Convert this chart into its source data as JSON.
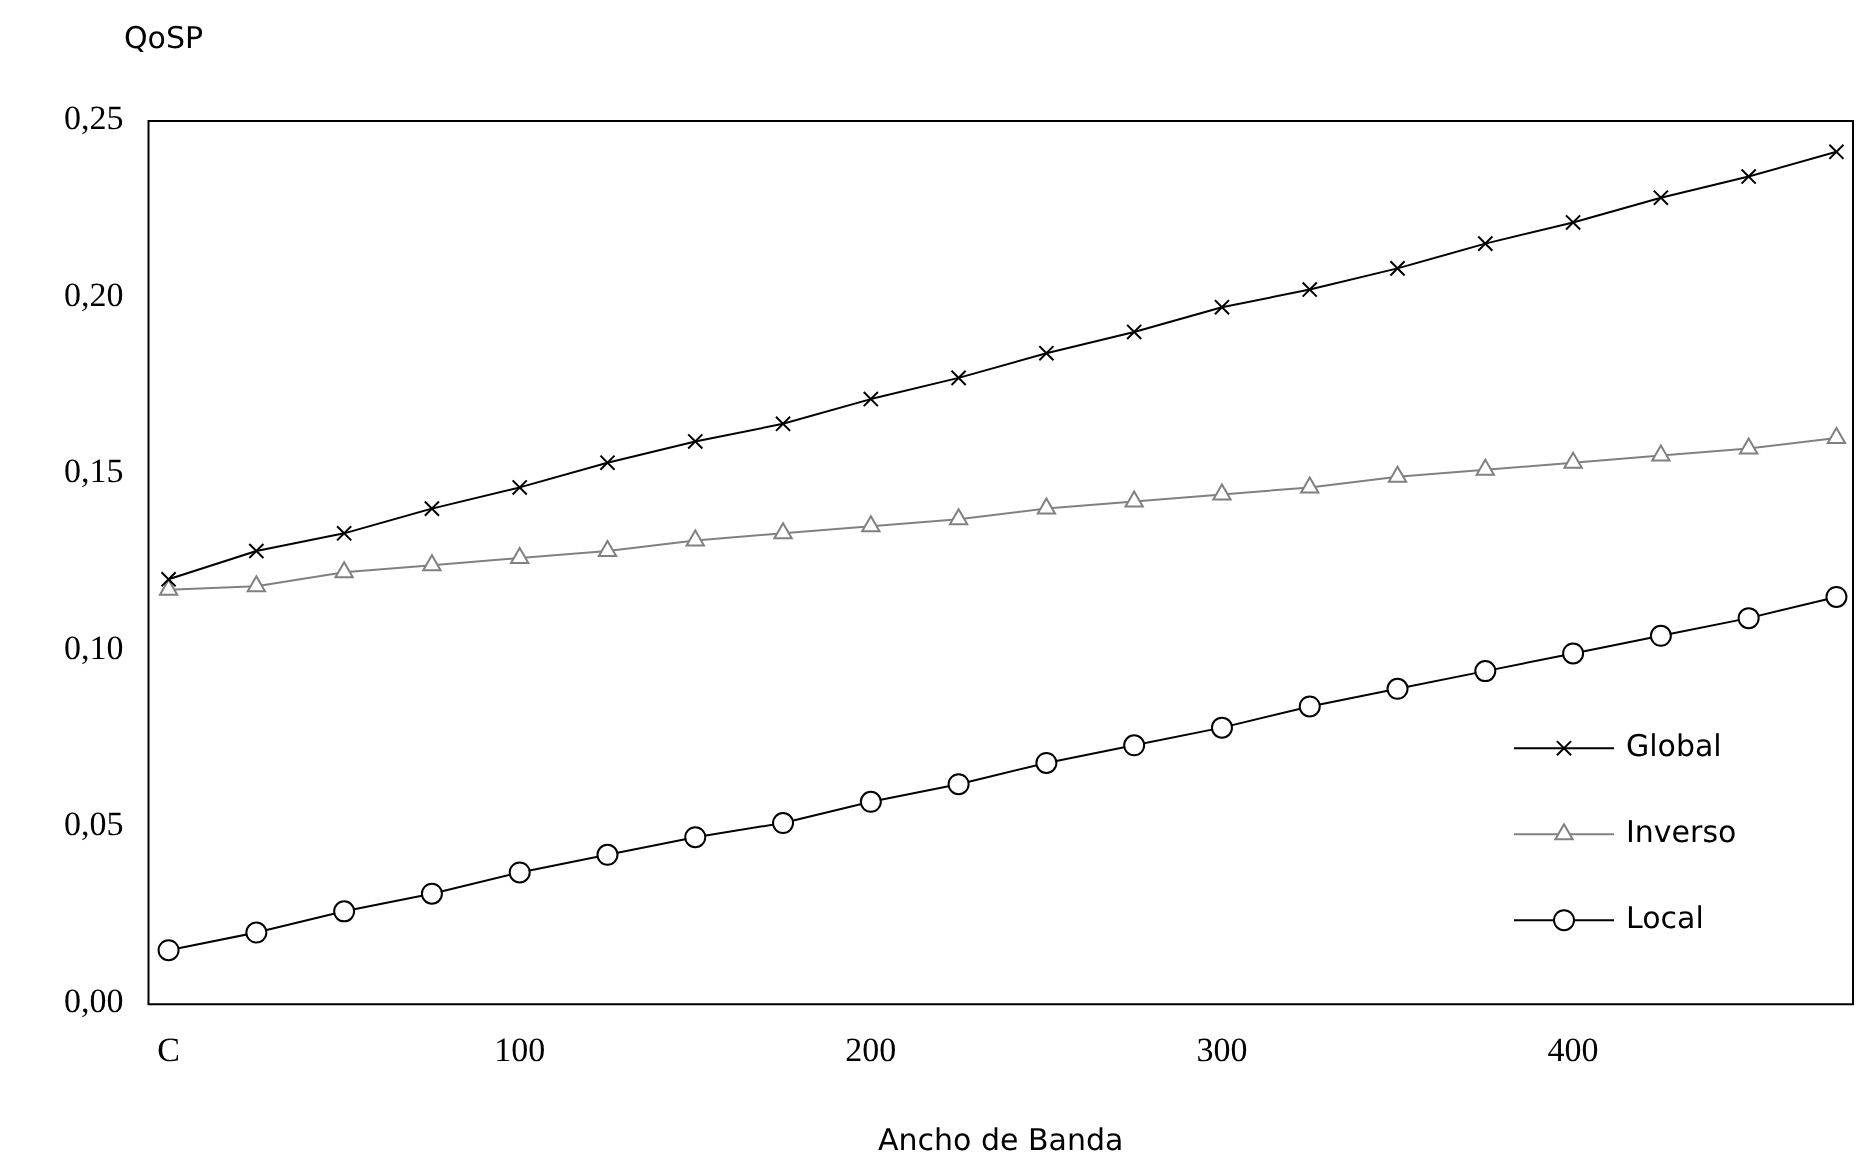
{
  "chart_data": {
    "type": "line",
    "xlabel": "Ancho de Banda",
    "ylabel": "QoSP",
    "x": [
      0,
      25,
      50,
      75,
      100,
      125,
      150,
      175,
      200,
      225,
      250,
      275,
      300,
      325,
      350,
      375,
      400,
      425,
      450,
      475
    ],
    "xlim": [
      -6,
      480
    ],
    "xticks": [
      {
        "value": 0,
        "label": "C"
      },
      100,
      200,
      300,
      400
    ],
    "ylim": [
      0,
      0.25
    ],
    "yticks": [
      {
        "value": 0,
        "label": "0,00"
      },
      {
        "value": 0.05,
        "label": "0,05"
      },
      {
        "value": 0.1,
        "label": "0,10"
      },
      {
        "value": 0.15,
        "label": "0,15"
      },
      {
        "value": 0.2,
        "label": "0,20"
      },
      {
        "value": 0.25,
        "label": "0,25"
      }
    ],
    "grid": false,
    "legend": "bottom right",
    "series": [
      {
        "name": "Global",
        "color": "#000000",
        "marker": "cross",
        "values": [
          0.12,
          0.128,
          0.133,
          0.14,
          0.146,
          0.153,
          0.159,
          0.164,
          0.171,
          0.177,
          0.184,
          0.19,
          0.197,
          0.202,
          0.208,
          0.215,
          0.221,
          0.228,
          0.234,
          0.241
        ]
      },
      {
        "name": "Inverso",
        "color": "#808080",
        "marker": "triangle",
        "values": [
          0.117,
          0.118,
          0.122,
          0.124,
          0.126,
          0.128,
          0.131,
          0.133,
          0.135,
          0.137,
          0.14,
          0.142,
          0.144,
          0.146,
          0.149,
          0.151,
          0.153,
          0.155,
          0.157,
          0.16
        ]
      },
      {
        "name": "Local",
        "color": "#000000",
        "marker": "circle",
        "values": [
          0.015,
          0.02,
          0.026,
          0.031,
          0.037,
          0.042,
          0.047,
          0.051,
          0.057,
          0.062,
          0.068,
          0.073,
          0.078,
          0.084,
          0.089,
          0.094,
          0.099,
          0.104,
          0.109,
          0.115
        ]
      }
    ]
  }
}
